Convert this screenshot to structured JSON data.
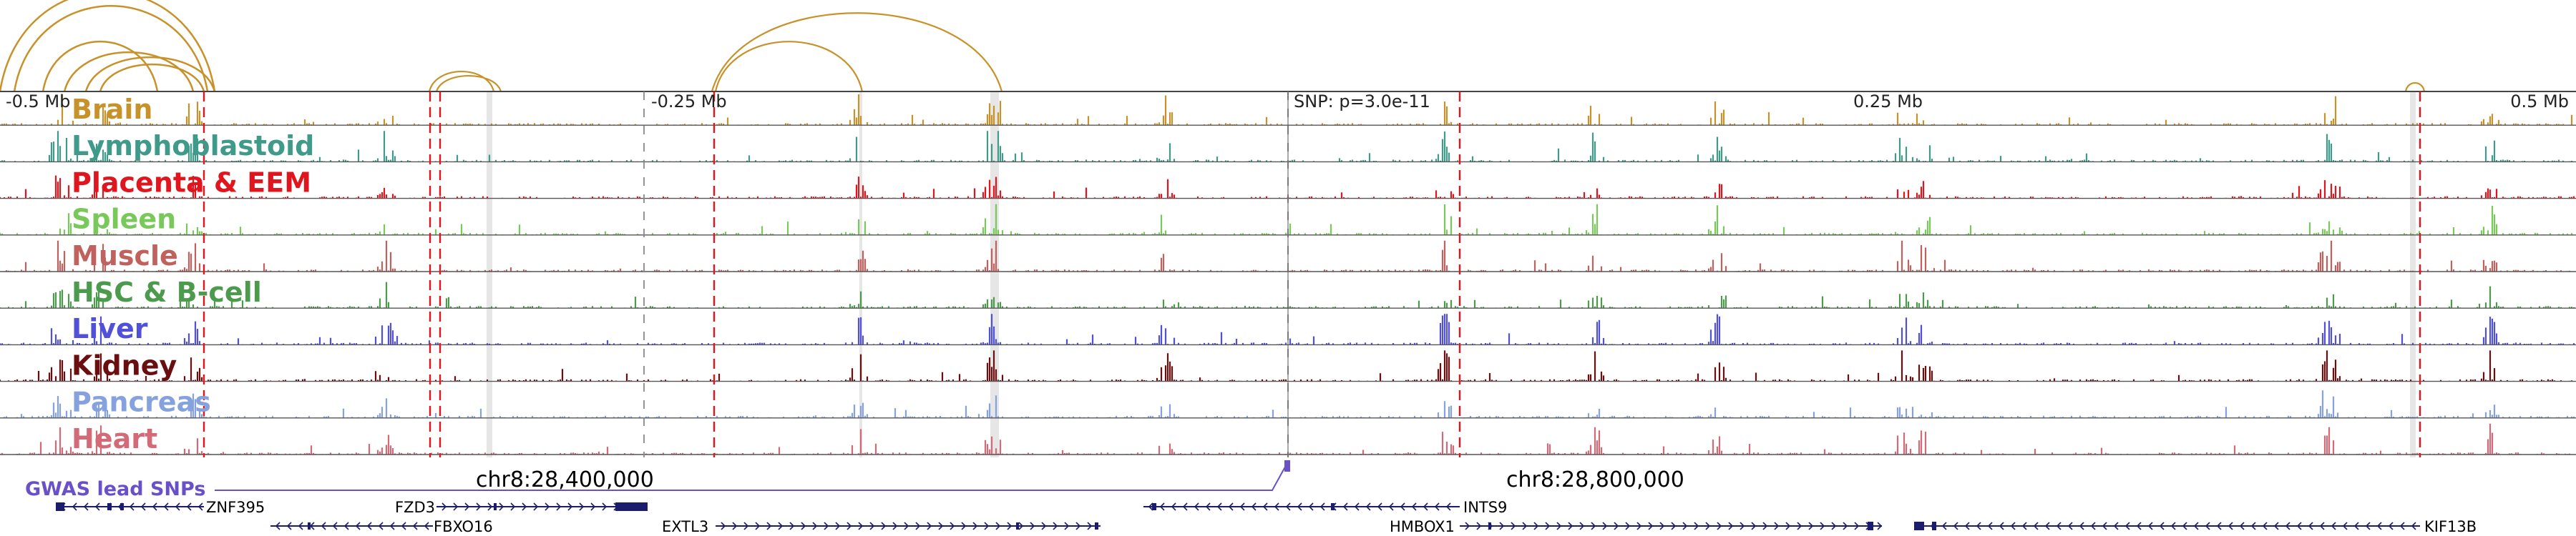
{
  "axis": {
    "ticks": [
      {
        "label": "-0.5 Mb",
        "pos": 0.0
      },
      {
        "label": "-0.25 Mb",
        "pos": 0.25
      },
      {
        "label": "SNP: p=3.0e-11",
        "pos": 0.5
      },
      {
        "label": "0.25 Mb",
        "pos": 0.75
      },
      {
        "label": "0.5 Mb",
        "pos": 1.0
      }
    ]
  },
  "tracks": [
    {
      "label": "Brain",
      "color": "#c8922a",
      "seed": 11
    },
    {
      "label": "Lymphoblastoid",
      "color": "#3f9a8a",
      "seed": 23
    },
    {
      "label": "Placenta & EEM",
      "color": "#e0151d",
      "seed": 37
    },
    {
      "label": "Spleen",
      "color": "#78c85a",
      "seed": 41
    },
    {
      "label": "Muscle",
      "color": "#c0615e",
      "seed": 53
    },
    {
      "label": "HSC & B-cell",
      "color": "#4c9a4c",
      "seed": 67
    },
    {
      "label": "Liver",
      "color": "#5050d8",
      "seed": 71
    },
    {
      "label": "Kidney",
      "color": "#6a0e10",
      "seed": 83
    },
    {
      "label": "Pancreas",
      "color": "#86a2de",
      "seed": 97
    },
    {
      "label": "Heart",
      "color": "#d36a78",
      "seed": 101
    }
  ],
  "coordinates": [
    {
      "label": "chr8:28,400,000"
    },
    {
      "label": "chr8:28,800,000"
    }
  ],
  "gwas": {
    "label": "GWAS lead SNPs",
    "color": "#6a50c8"
  },
  "genes": [
    {
      "name": "ZNF395",
      "row": 0
    },
    {
      "name": "FZD3",
      "row": 0
    },
    {
      "name": "INTS9",
      "row": 0
    },
    {
      "name": "FBXO16",
      "row": 1
    },
    {
      "name": "EXTL3",
      "row": 1
    },
    {
      "name": "HMBOX1",
      "row": 1
    },
    {
      "name": "KIF13B",
      "row": 1
    }
  ],
  "colors": {
    "arc": "#c8922a",
    "highlight": "#e6e6e6",
    "red_marker": "#e0151d",
    "gene": "#1c1c6e"
  }
}
